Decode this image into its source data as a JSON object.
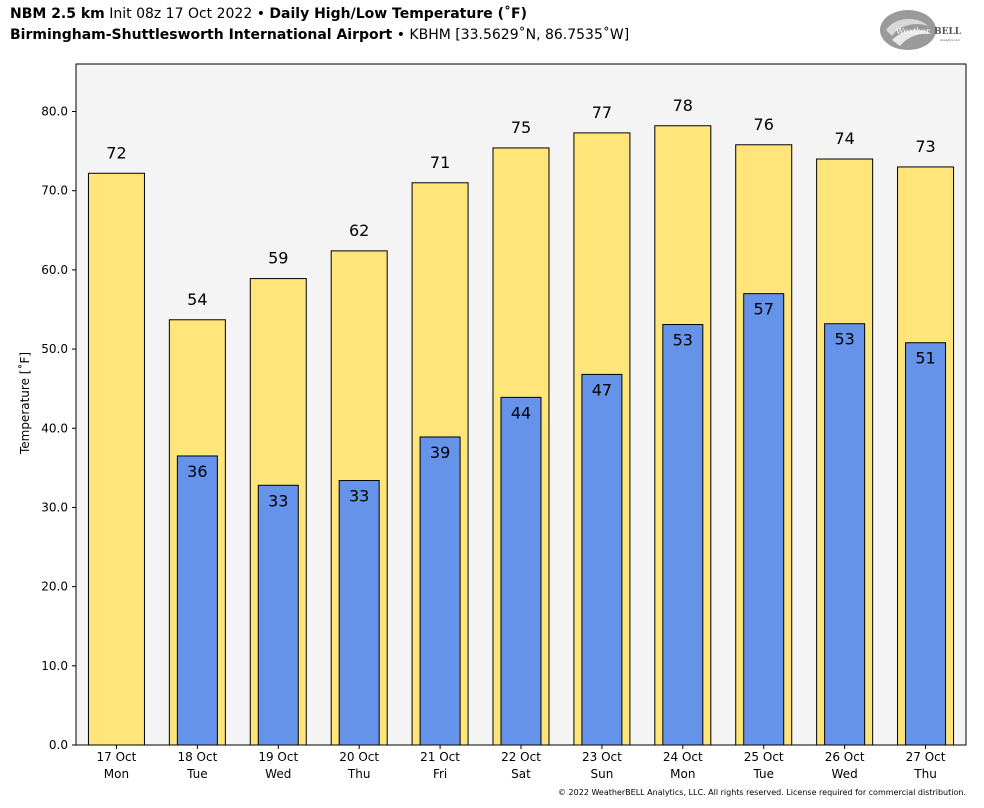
{
  "header": {
    "model": "NBM 2.5 km",
    "init": "Init 08z 17 Oct 2022",
    "sep1": "•",
    "product": "Daily High/Low Temperature (˚F)",
    "station": "Birmingham-Shuttlesworth International Airport",
    "sep2": "•",
    "station_detail": "KBHM [33.5629˚N, 86.7535˚W]"
  },
  "logo": {
    "text_a": "Weather",
    "text_b": "BELL",
    "sub": "Analytics LLC"
  },
  "footer": {
    "copyright": "© 2022 WeatherBELL Analytics, LLC. All rights reserved. License required for commercial distribution."
  },
  "chart_data": {
    "type": "bar",
    "ylabel": "Temperature [˚F]",
    "ylim": [
      0,
      86
    ],
    "yticks": [
      "0.0",
      "10.0",
      "20.0",
      "30.0",
      "40.0",
      "50.0",
      "60.0",
      "70.0",
      "80.0"
    ],
    "categories": [
      [
        "17 Oct",
        "Mon"
      ],
      [
        "18 Oct",
        "Tue"
      ],
      [
        "19 Oct",
        "Wed"
      ],
      [
        "20 Oct",
        "Thu"
      ],
      [
        "21 Oct",
        "Fri"
      ],
      [
        "22 Oct",
        "Sat"
      ],
      [
        "23 Oct",
        "Sun"
      ],
      [
        "24 Oct",
        "Mon"
      ],
      [
        "25 Oct",
        "Tue"
      ],
      [
        "26 Oct",
        "Wed"
      ],
      [
        "27 Oct",
        "Thu"
      ]
    ],
    "series": [
      {
        "values": [
          72.2,
          53.7,
          58.9,
          62.4,
          71.0,
          75.4,
          77.3,
          78.2,
          75.8,
          74.0,
          73.0
        ],
        "labels": [
          "72",
          "54",
          "59",
          "62",
          "71",
          "75",
          "77",
          "78",
          "76",
          "74",
          "73"
        ],
        "color": "#ffe57a"
      },
      {
        "values": [
          null,
          36.5,
          32.8,
          33.4,
          38.9,
          43.9,
          46.8,
          53.1,
          57.0,
          53.2,
          50.8
        ],
        "labels": [
          null,
          "36",
          "33",
          "33",
          "39",
          "44",
          "47",
          "53",
          "57",
          "53",
          "51"
        ],
        "color": "#6593ea"
      }
    ],
    "background": "#f4f4f4",
    "grid": false
  }
}
